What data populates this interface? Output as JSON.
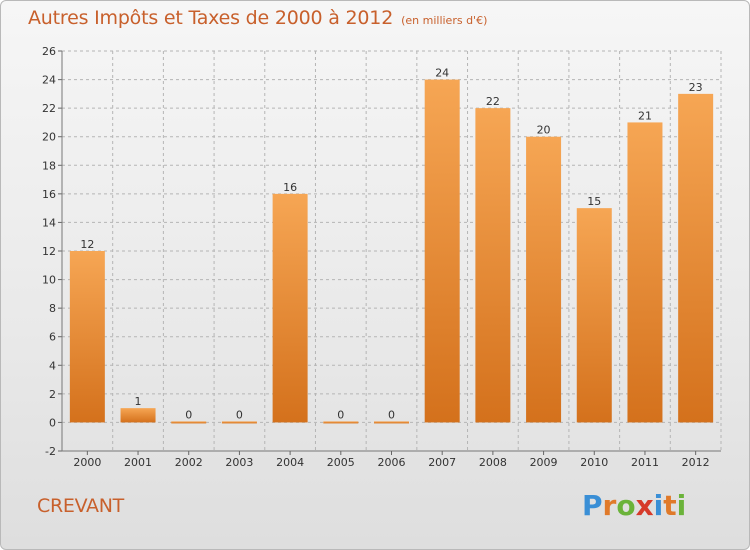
{
  "title": "Autres Impôts et Taxes de 2000 à 2012",
  "unit": "(en milliers d'€)",
  "commune": "CREVANT",
  "logo": {
    "letters": [
      "P",
      "r",
      "o",
      "x",
      "i",
      "t",
      "i"
    ],
    "colors": [
      "#3a8fd6",
      "#e07a2a",
      "#6bb33a",
      "#d63a2a",
      "#3a8fd6",
      "#e07a2a",
      "#6bb33a"
    ]
  },
  "colors": {
    "bar_top": "#f6a654",
    "bar_bottom": "#d4711c",
    "accent": "#c8602c",
    "grid": "#b5b5b5"
  },
  "chart_data": {
    "type": "bar",
    "categories": [
      "2000",
      "2001",
      "2002",
      "2003",
      "2004",
      "2005",
      "2006",
      "2007",
      "2008",
      "2009",
      "2010",
      "2011",
      "2012"
    ],
    "values": [
      12,
      1,
      0,
      0,
      16,
      0,
      0,
      24,
      22,
      20,
      15,
      21,
      23
    ],
    "ylim": [
      -2,
      26
    ],
    "yticks": [
      -2,
      0,
      2,
      4,
      6,
      8,
      10,
      12,
      14,
      16,
      18,
      20,
      22,
      24,
      26
    ],
    "grid": true,
    "title": "Autres Impôts et Taxes de 2000 à 2012",
    "xlabel": "",
    "ylabel": ""
  }
}
